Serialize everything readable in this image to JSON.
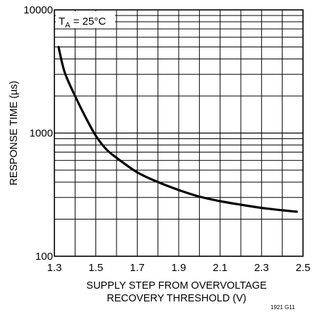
{
  "chart_data": {
    "type": "line",
    "title": "",
    "xlabel": [
      "SUPPLY STEP FROM OVERVOLTAGE",
      "RECOVERY THRESHOLD (V)"
    ],
    "ylabel": "RESPONSE TIME (µs)",
    "x_scale": "linear",
    "y_scale": "log",
    "xlim": [
      1.3,
      2.5
    ],
    "ylim": [
      100,
      10000
    ],
    "x_ticks": [
      "1.3",
      "1.5",
      "1.7",
      "1.9",
      "2.1",
      "2.3",
      "2.5"
    ],
    "y_ticks": [
      "100",
      "1000",
      "10000"
    ],
    "grid": true,
    "annotation": {
      "main": "T",
      "sub": "A",
      "rest": " = 25°C"
    },
    "figure_id": "1921 G11",
    "series": [
      {
        "x": [
          1.32,
          1.35,
          1.4,
          1.45,
          1.5,
          1.55,
          1.6,
          1.7,
          1.8,
          1.9,
          2.0,
          2.1,
          2.2,
          2.3,
          2.4,
          2.47
        ],
        "y": [
          5000,
          3100,
          2000,
          1350,
          950,
          740,
          630,
          480,
          400,
          345,
          305,
          280,
          262,
          247,
          236,
          230
        ]
      }
    ]
  }
}
